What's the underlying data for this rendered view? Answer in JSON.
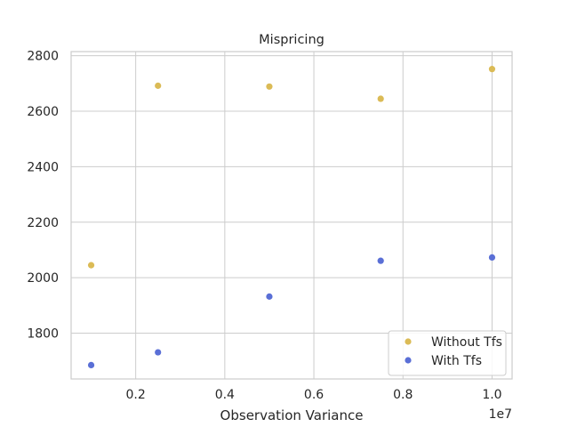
{
  "chart_data": {
    "type": "scatter",
    "title": "Mispricing",
    "xlabel": "Observation Variance",
    "ylabel": "",
    "x_offset_label": "1e7",
    "xlim": [
      550000,
      10450000
    ],
    "ylim": [
      1635,
      2815
    ],
    "x_ticks": [
      2000000,
      4000000,
      6000000,
      8000000,
      10000000
    ],
    "x_tick_labels": [
      "0.2",
      "0.4",
      "0.6",
      "0.8",
      "1.0"
    ],
    "y_ticks": [
      1800,
      2000,
      2200,
      2400,
      2600,
      2800
    ],
    "y_tick_labels": [
      "1800",
      "2000",
      "2200",
      "2400",
      "2600",
      "2800"
    ],
    "grid": true,
    "legend_position": "lower-right",
    "series": [
      {
        "name": "Without Tfs",
        "color": "#dbbb56",
        "x": [
          1000000,
          2500000,
          5000000,
          7500000,
          10000000
        ],
        "y": [
          2045,
          2692,
          2689,
          2645,
          2752
        ]
      },
      {
        "name": "With Tfs",
        "color": "#5a6fd6",
        "x": [
          1000000,
          2500000,
          5000000,
          7500000,
          10000000
        ],
        "y": [
          1685,
          1731,
          1932,
          2061,
          2073
        ]
      }
    ]
  }
}
